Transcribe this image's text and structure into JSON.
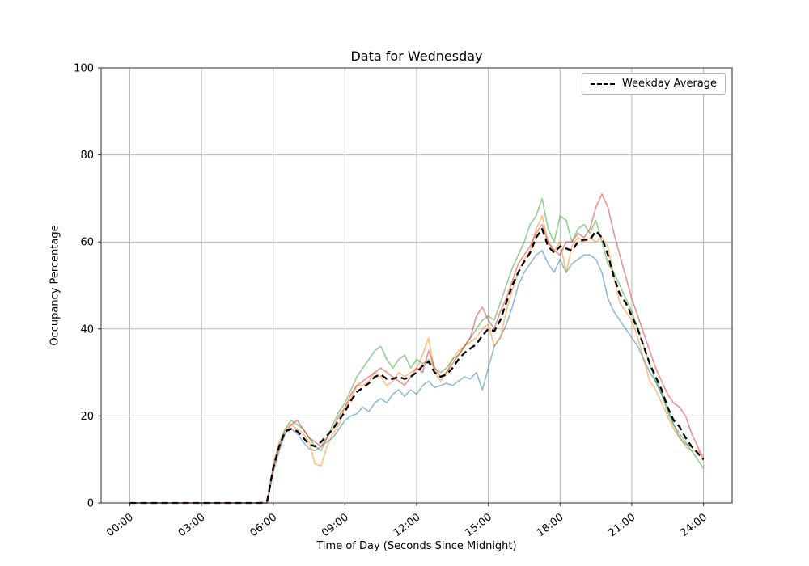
{
  "chart_data": {
    "type": "line",
    "title": "Data for Wednesday",
    "xlabel": "Time of Day (Seconds Since Midnight)",
    "ylabel": "Occupancy Percentage",
    "ylim": [
      0,
      100
    ],
    "x_range_hours": [
      -1.2,
      25.2
    ],
    "x_step_hours": 0.25,
    "grid": true,
    "y_ticks": [
      0,
      20,
      40,
      60,
      80,
      100
    ],
    "x_ticks": [
      {
        "hour": 0,
        "label": "00:00"
      },
      {
        "hour": 3,
        "label": "03:00"
      },
      {
        "hour": 6,
        "label": "06:00"
      },
      {
        "hour": 9,
        "label": "09:00"
      },
      {
        "hour": 12,
        "label": "12:00"
      },
      {
        "hour": 15,
        "label": "15:00"
      },
      {
        "hour": 18,
        "label": "18:00"
      },
      {
        "hour": 21,
        "label": "21:00"
      },
      {
        "hour": 24,
        "label": "24:00"
      }
    ],
    "legend": {
      "position": "upper right",
      "entries": [
        "Weekday Average"
      ]
    },
    "series": [
      {
        "name": "series-1",
        "color": "#1f77b4",
        "opacity": 0.5,
        "values": [
          0,
          0,
          0,
          0,
          0,
          0,
          0,
          0,
          0,
          0,
          0,
          0,
          0,
          0,
          0,
          0,
          0,
          0,
          0,
          0,
          0,
          0,
          0,
          0,
          7,
          12,
          16,
          17,
          16,
          14,
          12.5,
          12,
          13,
          14,
          15,
          17,
          19,
          20,
          20.5,
          22,
          21,
          23,
          24,
          23,
          25,
          26,
          24.5,
          26,
          25,
          27,
          28,
          26.5,
          27,
          27.5,
          27,
          28,
          29,
          28.5,
          30,
          26,
          31,
          36,
          38,
          41,
          45,
          50,
          53,
          55,
          57,
          58,
          55,
          53,
          56,
          53,
          55,
          56,
          57,
          57,
          56,
          53,
          47,
          44,
          42,
          40,
          38,
          36,
          33,
          30,
          28,
          25,
          22,
          18,
          15,
          13.5,
          13,
          null,
          null
        ]
      },
      {
        "name": "series-2",
        "color": "#ff7f0e",
        "opacity": 0.5,
        "values": [
          0,
          0,
          0,
          0,
          0,
          0,
          0,
          0,
          0,
          0,
          0,
          0,
          0,
          0,
          0,
          0,
          0,
          0,
          0,
          0,
          0,
          0,
          0,
          0,
          9,
          14,
          17,
          18,
          17,
          16,
          14,
          9,
          8.5,
          13,
          16,
          18,
          22,
          24,
          27,
          27,
          28,
          30,
          29,
          27,
          28,
          30,
          29,
          30,
          31,
          34,
          38,
          30,
          28,
          30,
          33,
          35,
          36,
          37,
          38,
          40,
          41,
          36,
          38,
          44,
          49,
          53,
          56,
          58,
          63,
          66,
          60,
          58,
          60,
          53,
          59,
          61,
          60,
          61,
          60,
          61,
          59,
          52,
          46,
          44,
          42,
          38,
          33,
          28,
          26,
          23,
          20,
          17,
          15,
          13,
          12,
          12,
          11
        ]
      },
      {
        "name": "series-3",
        "color": "#2ca02c",
        "opacity": 0.5,
        "values": [
          0,
          0,
          0,
          0,
          0,
          0,
          0,
          0,
          0,
          0,
          0,
          0,
          0,
          0,
          0,
          0,
          0,
          0,
          0,
          0,
          0,
          0,
          0,
          0,
          8,
          13,
          17,
          19,
          18,
          17,
          15,
          13,
          12,
          15,
          18,
          21,
          23,
          26,
          29,
          31,
          33,
          35,
          36,
          33,
          31,
          33,
          34,
          31,
          33,
          32,
          33,
          31,
          30,
          31,
          33,
          34,
          36,
          38,
          40,
          42,
          43,
          42,
          46,
          50,
          54,
          57,
          60,
          64,
          66,
          70,
          63,
          60,
          66,
          65,
          60,
          63,
          64,
          62,
          65,
          60,
          55,
          53,
          50,
          47,
          44,
          40,
          36,
          32,
          28,
          25,
          21,
          18,
          16,
          14,
          12,
          10,
          8
        ]
      },
      {
        "name": "series-4",
        "color": "#d62728",
        "opacity": 0.5,
        "values": [
          0,
          0,
          0,
          0,
          0,
          0,
          0,
          0,
          0,
          0,
          0,
          0,
          0,
          0,
          0,
          0,
          0,
          0,
          0,
          0,
          0,
          0,
          0,
          0,
          8,
          13,
          16,
          18,
          19,
          17,
          15,
          14,
          13,
          15,
          17,
          20,
          22,
          25,
          27,
          28,
          29,
          30,
          31,
          30,
          29,
          28,
          27,
          29,
          31,
          30,
          35,
          31,
          29,
          30,
          32,
          34,
          36,
          38,
          43,
          45,
          42,
          40,
          44,
          47,
          51,
          55,
          57,
          59,
          62,
          64,
          60,
          58,
          57,
          60,
          60,
          62,
          61,
          63,
          68,
          71,
          68,
          62,
          57,
          52,
          47,
          43,
          39,
          35,
          31,
          28,
          25,
          23,
          22,
          20,
          16,
          13,
          10
        ]
      }
    ],
    "average": {
      "name": "Weekday Average",
      "color": "#000000",
      "dash": [
        8,
        5
      ],
      "values": [
        0,
        0,
        0,
        0,
        0,
        0,
        0,
        0,
        0,
        0,
        0,
        0,
        0,
        0,
        0,
        0,
        0,
        0,
        0,
        0,
        0,
        0,
        0,
        0.5,
        8,
        13,
        16.5,
        17,
        16.5,
        15,
        13.5,
        13,
        14,
        15.5,
        17,
        19,
        21,
        23.5,
        25.5,
        26.5,
        27.5,
        29,
        29.5,
        28.5,
        28.5,
        29,
        28.5,
        29,
        30,
        31.5,
        32.5,
        30,
        29,
        29.5,
        31,
        33,
        34.5,
        35.5,
        36.5,
        38.5,
        40,
        39.5,
        42,
        46,
        50,
        53,
        55.5,
        57.5,
        61,
        63,
        59,
        57.5,
        59,
        58.5,
        58,
        60,
        60.5,
        60.5,
        62.5,
        61,
        57,
        52,
        48,
        46,
        43,
        40,
        36,
        32,
        29,
        26,
        22,
        19,
        17.5,
        15,
        13,
        11.5,
        10
      ]
    },
    "style": {
      "grid_color": "#b9b9b9",
      "spine_color": "#2b2b2b",
      "background": "#ffffff"
    }
  }
}
